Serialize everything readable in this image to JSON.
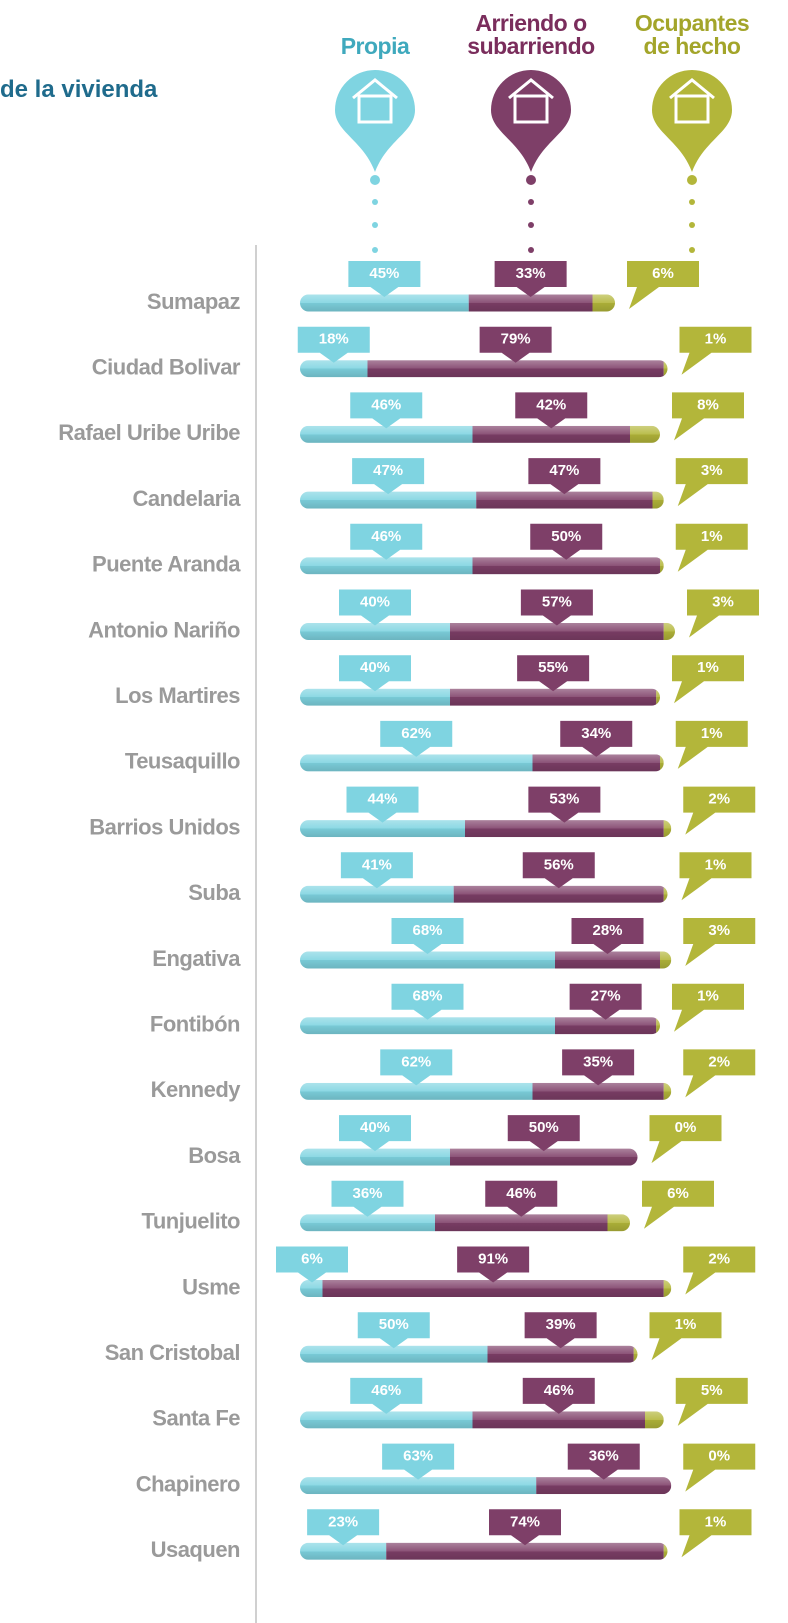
{
  "chart_data": {
    "type": "stacked_bar",
    "title": "de la vivienda",
    "categories": [
      "Sumapaz",
      "Ciudad Bolivar",
      "Rafael Uribe Uribe",
      "Candelaria",
      "Puente Aranda",
      "Antonio Nariño",
      "Los Martires",
      "Teusaquillo",
      "Barrios Unidos",
      "Suba",
      "Engativa",
      "Fontibón",
      "Kennedy",
      "Bosa",
      "Tunjuelito",
      "Usme",
      "San Cristobal",
      "Santa Fe",
      "Chapinero",
      "Usaquen"
    ],
    "xlim": [
      0,
      100
    ],
    "series": [
      {
        "name": "Propia",
        "color": "#7fd4e1",
        "label_color": "#3fa9bd",
        "values": [
          45,
          18,
          46,
          47,
          46,
          40,
          40,
          62,
          44,
          41,
          68,
          68,
          62,
          40,
          36,
          6,
          50,
          46,
          63,
          23
        ],
        "value_labels": [
          "45%",
          "18%",
          "46%",
          "47%",
          "46%",
          "40%",
          "40%",
          "62%",
          "44%",
          "41%",
          "68%",
          "68%",
          "62%",
          "40%",
          "36%",
          "6%",
          "50%",
          "46%",
          "63%",
          "23%"
        ]
      },
      {
        "name": "Arriendo o subarriendo",
        "color": "#7e3f68",
        "label_color": "#7a2d5c",
        "values": [
          33,
          79,
          42,
          47,
          50,
          57,
          55,
          34,
          53,
          56,
          28,
          27,
          35,
          50,
          46,
          91,
          39,
          46,
          36,
          74
        ],
        "value_labels": [
          "33%",
          "79%",
          "42%",
          "47%",
          "50%",
          "57%",
          "55%",
          "34%",
          "53%",
          "56%",
          "28%",
          "27%",
          "35%",
          "50%",
          "46%",
          "91%",
          "39%",
          "46%",
          "36%",
          "74%"
        ]
      },
      {
        "name": "Ocupantes de hecho",
        "color": "#b3b63a",
        "label_color": "#a3a52a",
        "values": [
          6,
          1,
          8,
          3,
          1,
          3,
          1,
          1,
          2,
          1,
          3,
          1,
          2,
          0,
          6,
          2,
          1,
          5,
          0,
          1
        ],
        "value_labels": [
          "6%",
          "1%",
          "8%",
          "3%",
          "1%",
          "3%",
          "1%",
          "1%",
          "2%",
          "1%",
          "3%",
          "1%",
          "2%",
          "0%",
          "6%",
          "2%",
          "1%",
          "5%",
          "0%",
          "1%"
        ]
      }
    ]
  }
}
